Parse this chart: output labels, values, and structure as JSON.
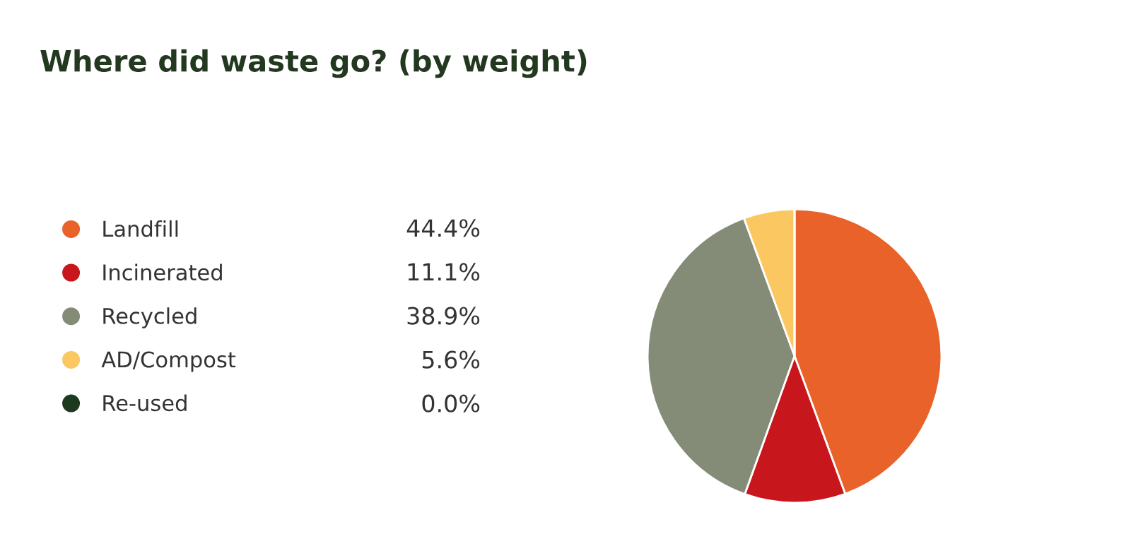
{
  "chart_data": {
    "type": "pie",
    "title": "Where did waste go? (by weight)",
    "categories": [
      "Landfill",
      "Incinerated",
      "Recycled",
      "AD/Compost",
      "Re-used"
    ],
    "values": [
      44.4,
      11.1,
      38.9,
      5.6,
      0.0
    ],
    "colors": [
      "#e8622a",
      "#c8161d",
      "#848c77",
      "#fbc761",
      "#1e3a1e"
    ],
    "value_labels": [
      "44.4%",
      "11.1%",
      "38.9%",
      "5.6%",
      "0.0%"
    ],
    "legend": "left"
  }
}
